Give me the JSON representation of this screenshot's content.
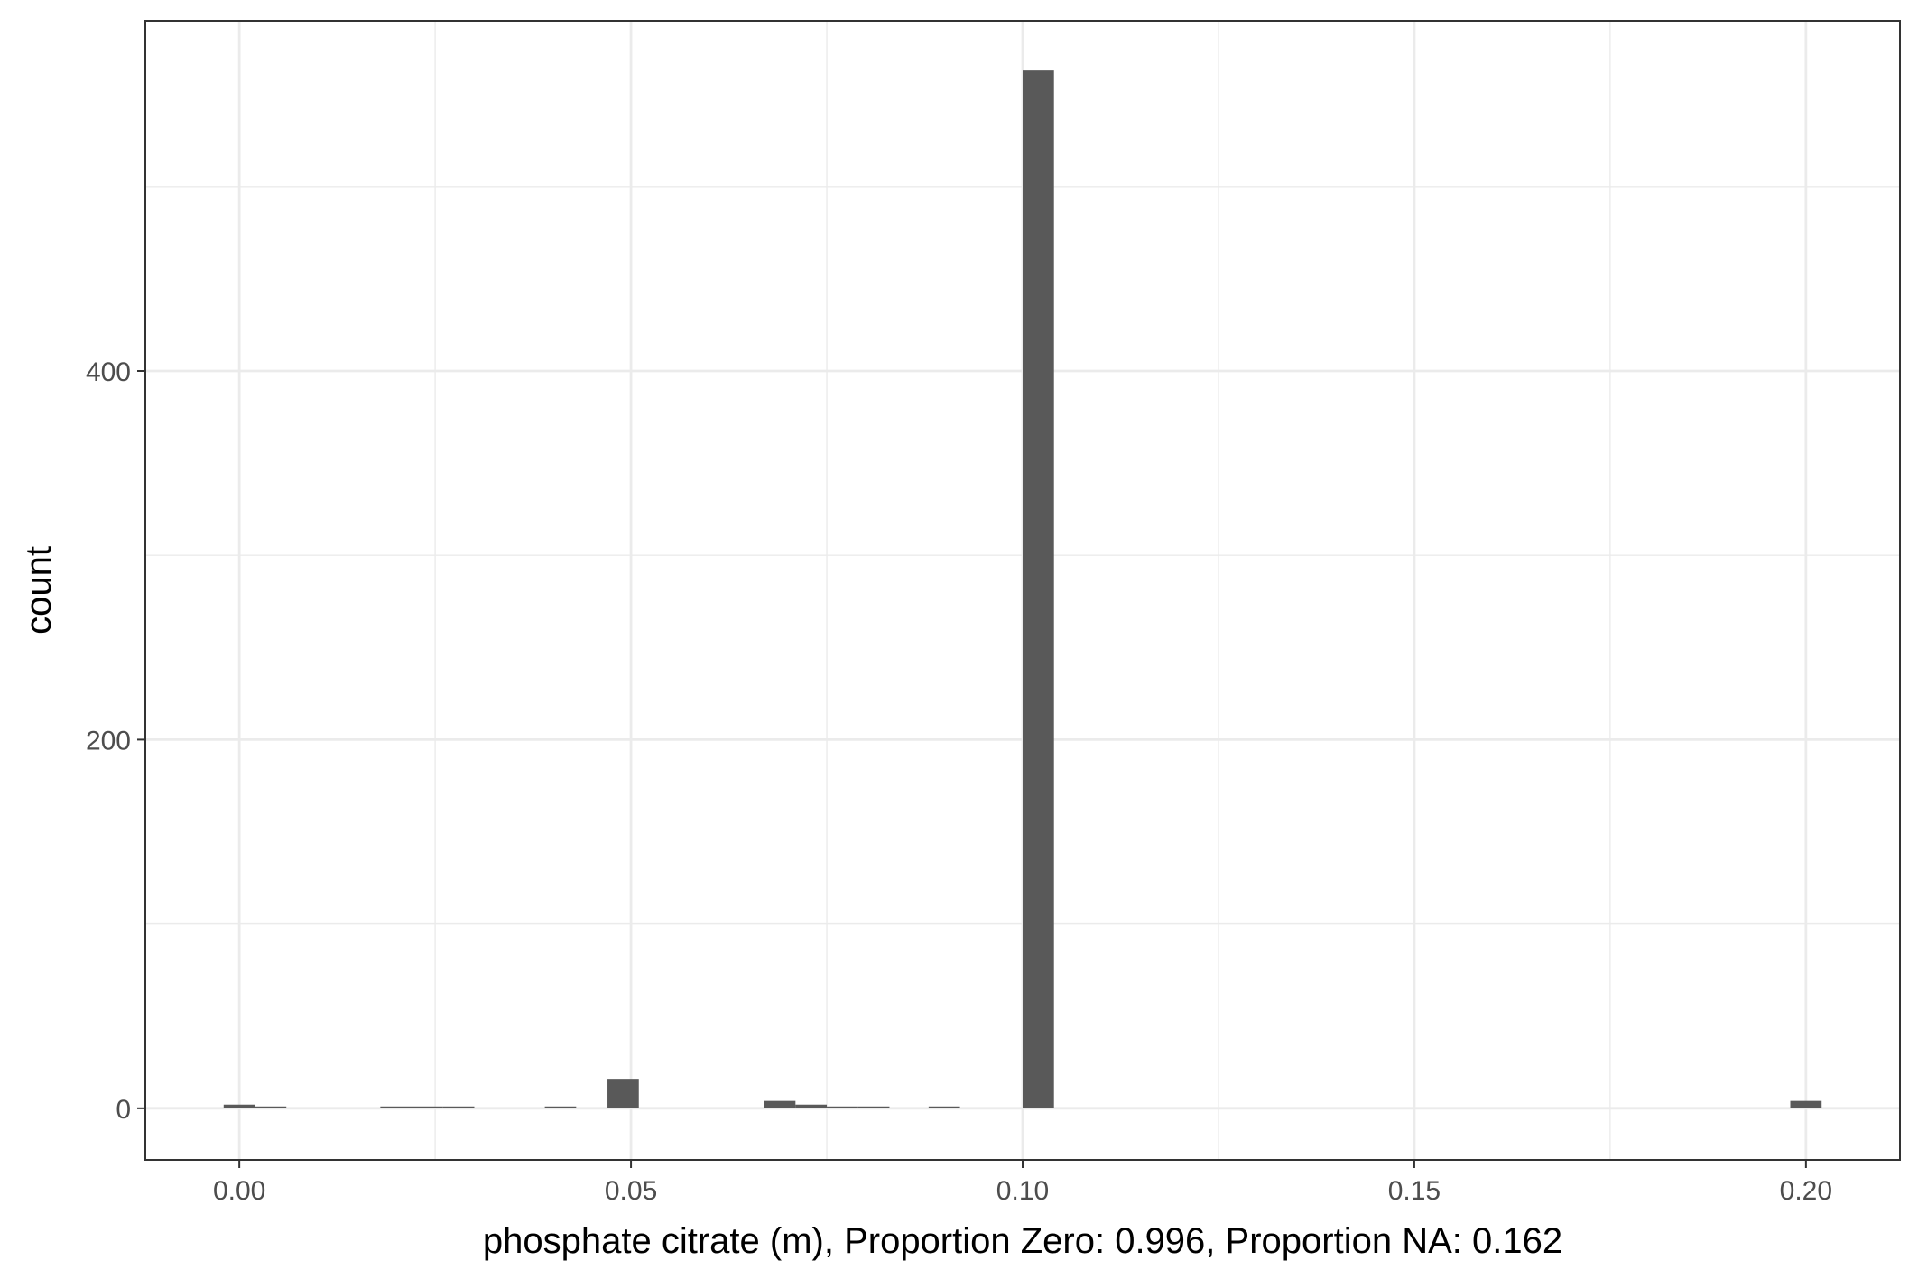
{
  "chart_data": {
    "type": "bar",
    "subtype": "histogram",
    "title": "",
    "xlabel": "phosphate citrate (m), Proportion Zero: 0.996, Proportion NA: 0.162",
    "ylabel": "count",
    "xlim": [
      -0.012,
      0.212
    ],
    "ylim": [
      -28,
      590
    ],
    "x_ticks": [
      0.0,
      0.05,
      0.1,
      0.15,
      0.2
    ],
    "x_tick_labels": [
      "0.00",
      "0.05",
      "0.10",
      "0.15",
      "0.20"
    ],
    "y_ticks": [
      0,
      200,
      400
    ],
    "y_tick_labels": [
      "0",
      "200",
      "400"
    ],
    "bin_width": 0.004,
    "bars": [
      {
        "x": 0.0,
        "count": 2
      },
      {
        "x": 0.004,
        "count": 1
      },
      {
        "x": 0.02,
        "count": 1
      },
      {
        "x": 0.024,
        "count": 1
      },
      {
        "x": 0.028,
        "count": 1
      },
      {
        "x": 0.041,
        "count": 1
      },
      {
        "x": 0.049,
        "count": 16
      },
      {
        "x": 0.069,
        "count": 4
      },
      {
        "x": 0.073,
        "count": 2
      },
      {
        "x": 0.077,
        "count": 1
      },
      {
        "x": 0.081,
        "count": 1
      },
      {
        "x": 0.09,
        "count": 1
      },
      {
        "x": 0.102,
        "count": 563
      },
      {
        "x": 0.2,
        "count": 4
      }
    ],
    "grid": true,
    "colors": {
      "bar": "#595959",
      "grid": "#ebebeb",
      "panel_border": "#333333",
      "tick_text": "#4d4d4d",
      "axis_title": "#000000"
    }
  }
}
